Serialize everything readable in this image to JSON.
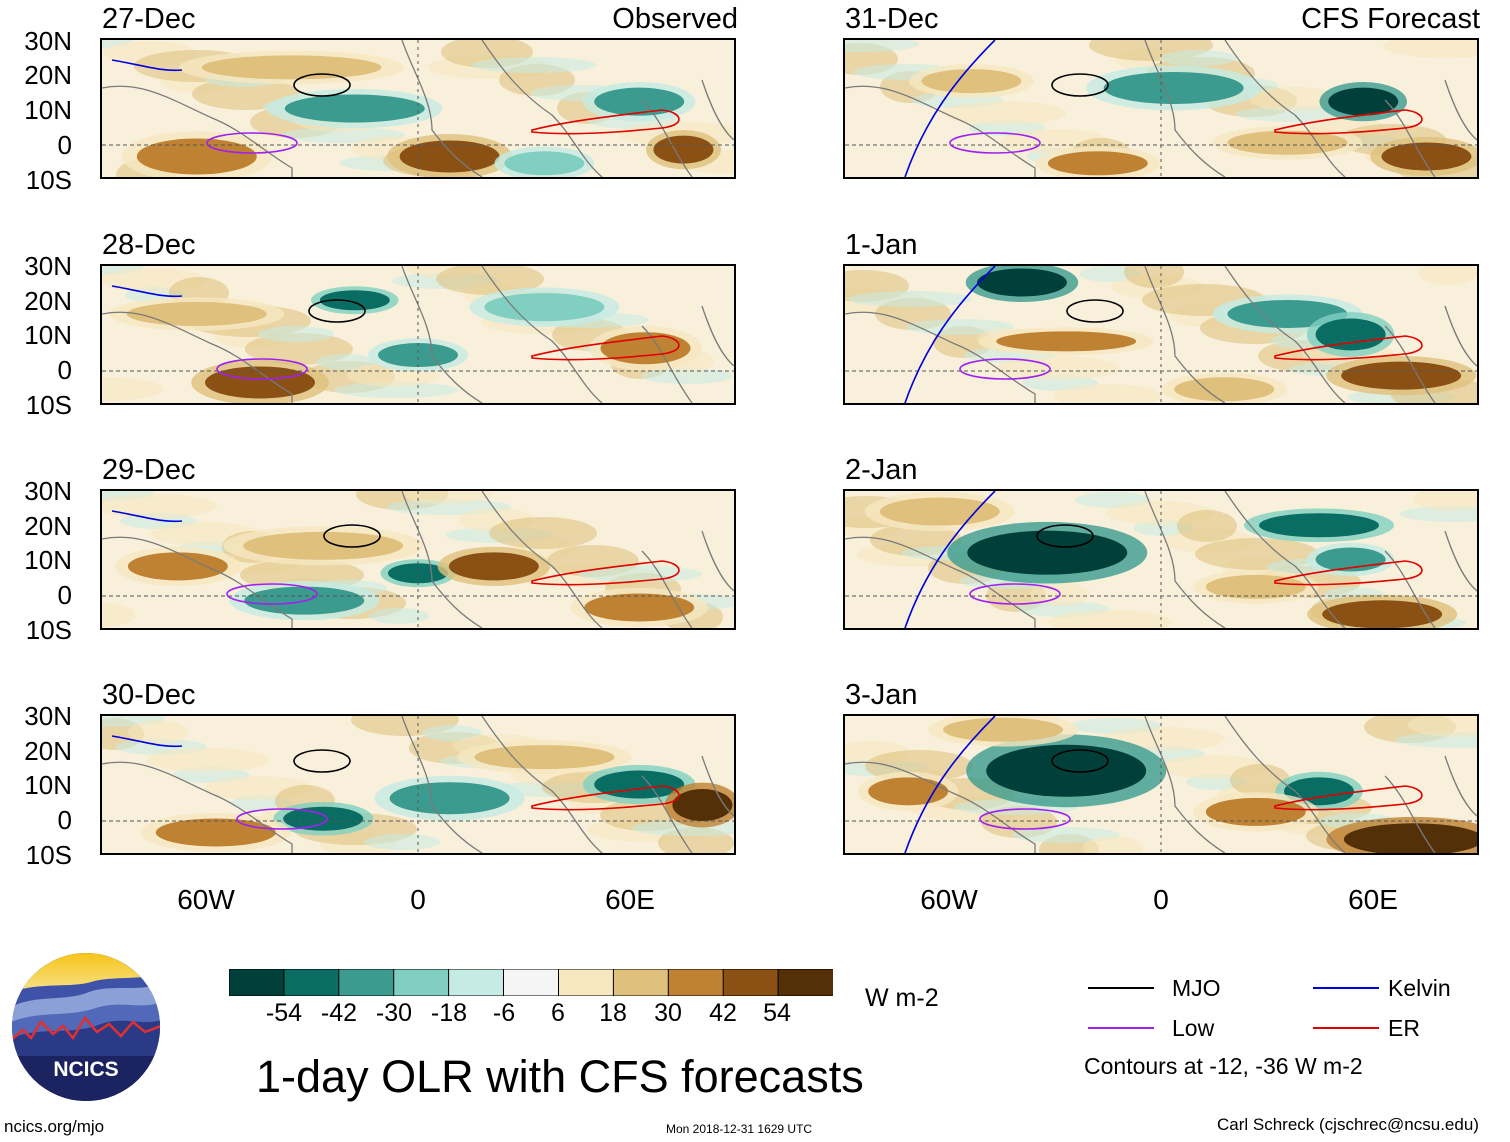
{
  "panels_left": [
    {
      "date": "27-Dec",
      "label": "Observed"
    },
    {
      "date": "28-Dec",
      "label": ""
    },
    {
      "date": "29-Dec",
      "label": ""
    },
    {
      "date": "30-Dec",
      "label": ""
    }
  ],
  "panels_right": [
    {
      "date": "31-Dec",
      "label": "CFS Forecast"
    },
    {
      "date": "1-Jan",
      "label": ""
    },
    {
      "date": "2-Jan",
      "label": ""
    },
    {
      "date": "3-Jan",
      "label": ""
    }
  ],
  "lat_labels": [
    "30N",
    "20N",
    "10N",
    "0",
    "10S"
  ],
  "lon_labels": [
    "60W",
    "0",
    "60E"
  ],
  "colorbar": {
    "colors": [
      "#01403a",
      "#0a6d64",
      "#3a9b8e",
      "#80cfc0",
      "#c6ebe4",
      "#f5f5f5",
      "#f6e7c0",
      "#dfc07c",
      "#bf8232",
      "#8a5014",
      "#543009"
    ],
    "labels": [
      "-54",
      "-42",
      "-30",
      "-18",
      "-6",
      "6",
      "18",
      "30",
      "42",
      "54"
    ],
    "units": "W m-2"
  },
  "legend": {
    "items": [
      {
        "name": "MJO",
        "color": "#000000"
      },
      {
        "name": "Kelvin",
        "color": "#0000e0"
      },
      {
        "name": "Low",
        "color": "#a020f0"
      },
      {
        "name": "ER",
        "color": "#e00000"
      }
    ],
    "note": "Contours at -12, -36 W m-2"
  },
  "title": "1-day OLR with CFS forecasts",
  "logo_text": "NCICS",
  "footer_left": "ncics.org/mjo",
  "footer_center": "Mon 2018-12-31 1629 UTC",
  "footer_right": "Carl Schreck (cjschrec@ncsu.edu)"
}
